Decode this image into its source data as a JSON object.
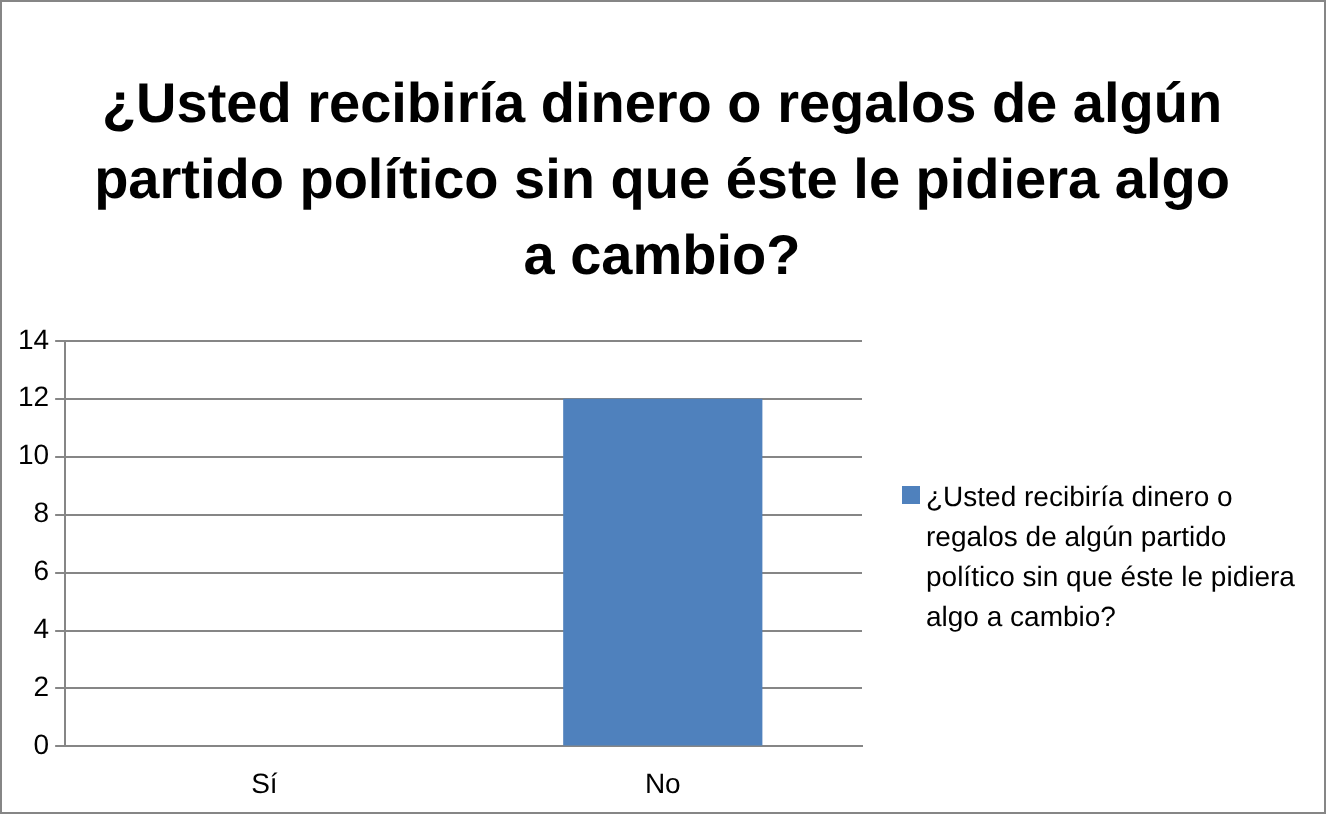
{
  "chart_data": {
    "type": "bar",
    "title": "¿Usted recibiría dinero o regalos de algún partido político sin que éste le pidiera algo a cambio?",
    "categories": [
      "Sí",
      "No"
    ],
    "series": [
      {
        "name": "¿Usted recibiría dinero o regalos de algún partido político sin que éste le pidiera algo a cambio?",
        "color": "#4f81bd",
        "values": [
          0,
          12
        ]
      }
    ],
    "ylim": [
      0,
      14
    ],
    "yticks": [
      0,
      2,
      4,
      6,
      8,
      10,
      12,
      14
    ],
    "grid": "y",
    "legend": "right"
  }
}
